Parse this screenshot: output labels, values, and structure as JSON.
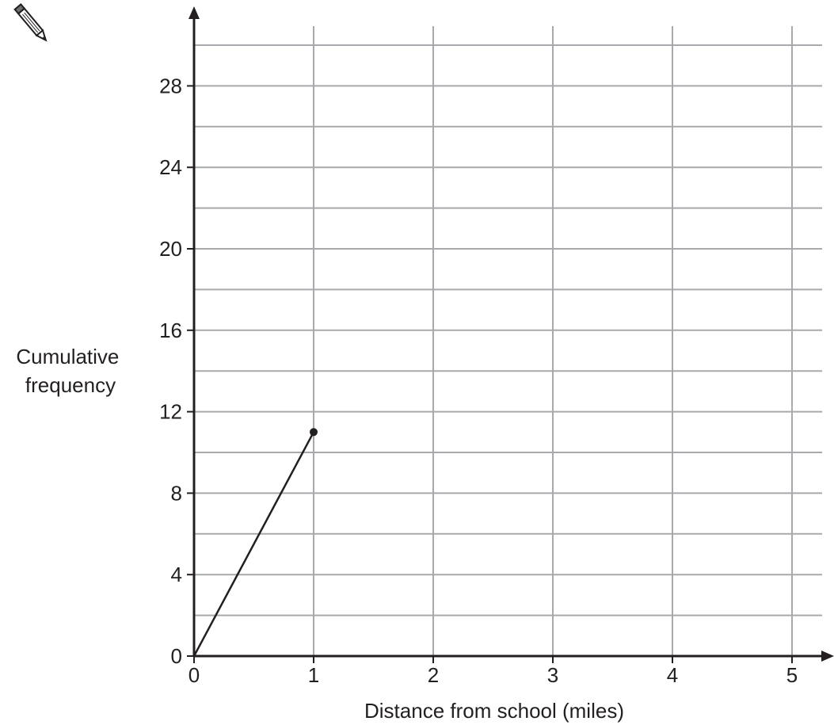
{
  "chart_data": {
    "type": "line",
    "xlabel": "Distance from school (miles)",
    "ylabel_lines": [
      "Cumulative",
      "frequency"
    ],
    "xlim": [
      0,
      5
    ],
    "ylim": [
      0,
      28
    ],
    "x_ticks": [
      0,
      1,
      2,
      3,
      4,
      5
    ],
    "y_ticks": [
      0,
      4,
      8,
      12,
      16,
      20,
      24,
      28
    ],
    "x_tick_labels": [
      "0",
      "1",
      "2",
      "3",
      "4",
      "5"
    ],
    "y_tick_labels": [
      "0",
      "4",
      "8",
      "12",
      "16",
      "20",
      "24",
      "28"
    ],
    "grid": {
      "x_step": 1,
      "y_step": 2,
      "visible": true
    },
    "series": [
      {
        "x": [
          0,
          1
        ],
        "y": [
          0,
          11
        ],
        "endpoint_marker": true
      }
    ],
    "colors": {
      "axis": "#231f20",
      "grid": "#a7a9ac",
      "line": "#231f20",
      "text": "#231f20"
    }
  },
  "icons": {
    "pencil": "pencil-icon"
  }
}
